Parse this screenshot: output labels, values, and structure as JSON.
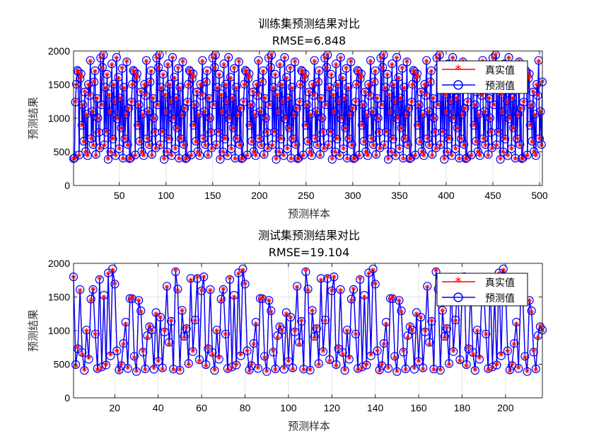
{
  "chart_data": [
    {
      "type": "line",
      "title": "训练集预测结果对比",
      "subtitle": "RMSE=6.848",
      "xlabel": "预测样本",
      "ylabel": "预测结果",
      "xlim": [
        1,
        503
      ],
      "ylim": [
        0,
        2000
      ],
      "xticks": [
        50,
        100,
        150,
        200,
        250,
        300,
        350,
        400,
        450,
        500
      ],
      "yticks": [
        0,
        500,
        1000,
        1500,
        2000
      ],
      "grid": true,
      "legend_position": "top-right",
      "n_points": 503,
      "series": [
        {
          "name": "真实值",
          "color": "#ff0000",
          "marker": "asterisk"
        },
        {
          "name": "预测值",
          "color": "#0000ff",
          "marker": "circle"
        }
      ],
      "pattern_values": [
        400,
        400,
        1250,
        1500,
        1700,
        1700,
        450,
        1600,
        1650,
        900,
        1200,
        650,
        1400,
        500,
        1050,
        450,
        1500,
        1350,
        1850,
        700,
        1100,
        600,
        1550,
        1700,
        450,
        1300,
        1000,
        800,
        550,
        1900,
        1200,
        1750,
        1950,
        600,
        1450,
        800,
        1650,
        400,
        1350,
        1100,
        500,
        1800,
        700,
        1500,
        1250,
        450,
        1900,
        1000,
        1600,
        550,
        1300,
        850,
        1750,
        400,
        1450,
        700,
        1050,
        1850,
        600,
        1150
      ],
      "predicted_offsets": [
        0,
        8,
        -10,
        6,
        12,
        -6,
        4,
        -12,
        10,
        -4
      ]
    },
    {
      "type": "line",
      "title": "测试集预测结果对比",
      "subtitle": "RMSE=19.104",
      "xlabel": "预测样本",
      "ylabel": "预测结果",
      "xlim": [
        1,
        217
      ],
      "ylim": [
        0,
        2000
      ],
      "xticks": [
        20,
        40,
        60,
        80,
        100,
        120,
        140,
        160,
        180,
        200
      ],
      "yticks": [
        0,
        500,
        1000,
        1500,
        2000
      ],
      "grid": true,
      "legend_position": "top-right",
      "n_points": 217,
      "series": [
        {
          "name": "真实值",
          "color": "#ff0000",
          "marker": "asterisk"
        },
        {
          "name": "预测值",
          "color": "#0000ff",
          "marker": "circle"
        }
      ],
      "pattern_values": [
        1800,
        480,
        750,
        1600,
        650,
        420,
        1000,
        600,
        1450,
        1620,
        950,
        420,
        1780,
        450,
        1500,
        500,
        1850,
        650,
        1900,
        1700,
        700,
        400,
        500,
        800,
        1100,
        450,
        1470,
        1500,
        600,
        400,
        1450,
        1280,
        700,
        420,
        900,
        1070,
        1000,
        450,
        1250,
        550,
        1200,
        430,
        1000,
        1650,
        800,
        1150,
        420,
        1900,
        1600,
        420,
        1300,
        900,
        1050,
        500,
        1750,
        700,
        1150,
        1800,
        550,
        1600
      ],
      "predicted_offsets": [
        0,
        15,
        -20,
        10,
        25,
        -12,
        8,
        -25,
        18,
        -8
      ]
    }
  ]
}
